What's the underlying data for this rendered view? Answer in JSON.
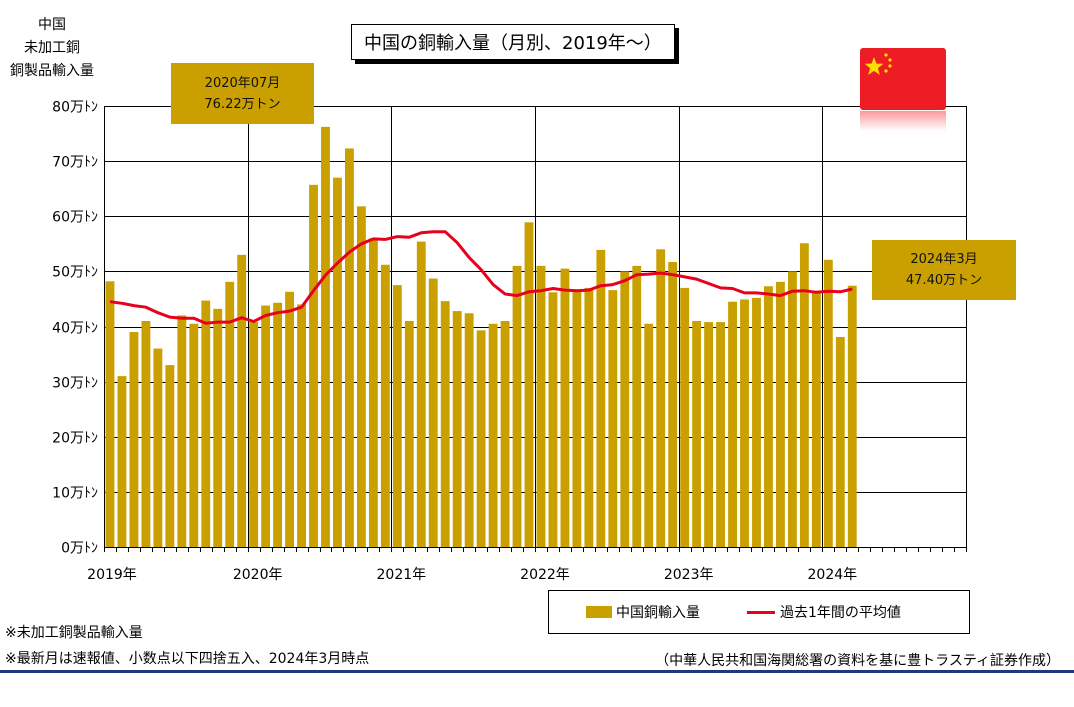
{
  "title": "中国の銅輸入量（月別、2019年～）",
  "y_axis_title_lines": [
    "中国",
    "未加工銅",
    "銅製品輸入量"
  ],
  "callouts": {
    "peak": {
      "line1": "2020年07月",
      "line2": "76.22万トン"
    },
    "latest": {
      "line1": "2024年3月",
      "line2": "47.40万トン"
    }
  },
  "legend": {
    "bar_label": "中国銅輸入量",
    "line_label": "過去1年間の平均値"
  },
  "notes": [
    "※未加工銅製品輸入量",
    "※最新月は速報値、小数点以下四捨五入、2024年3月時点"
  ],
  "source": "（中華人民共和国海関総署の資料を基に豊トラスティ証券作成）",
  "flag": {
    "name": "china-flag",
    "red": "#ee1c25",
    "yellow": "#ffde00"
  },
  "colors": {
    "bar": "#c9a000",
    "line": "#e8001c"
  },
  "chart_data": {
    "type": "bar",
    "title": "中国の銅輸入量（月別、2019年～）",
    "unit": "万トン",
    "ylim": [
      0,
      80
    ],
    "yticks": [
      0,
      10,
      20,
      30,
      40,
      50,
      60,
      70,
      80
    ],
    "ytick_labels": [
      "0万ﾄﾝ",
      "10万ﾄﾝ",
      "20万ﾄﾝ",
      "30万ﾄﾝ",
      "40万ﾄﾝ",
      "50万ﾄﾝ",
      "60万ﾄﾝ",
      "70万ﾄﾝ",
      "80万ﾄﾝ"
    ],
    "x_year_labels": [
      "2019年",
      "2020年",
      "2021年",
      "2022年",
      "2023年",
      "2024年"
    ],
    "x_range": [
      "2019-01",
      "2024-12"
    ],
    "grid": true,
    "categories": [
      "2019-01",
      "2019-02",
      "2019-03",
      "2019-04",
      "2019-05",
      "2019-06",
      "2019-07",
      "2019-08",
      "2019-09",
      "2019-10",
      "2019-11",
      "2019-12",
      "2020-01",
      "2020-02",
      "2020-03",
      "2020-04",
      "2020-05",
      "2020-06",
      "2020-07",
      "2020-08",
      "2020-09",
      "2020-10",
      "2020-11",
      "2020-12",
      "2021-01",
      "2021-02",
      "2021-03",
      "2021-04",
      "2021-05",
      "2021-06",
      "2021-07",
      "2021-08",
      "2021-09",
      "2021-10",
      "2021-11",
      "2021-12",
      "2022-01",
      "2022-02",
      "2022-03",
      "2022-04",
      "2022-05",
      "2022-06",
      "2022-07",
      "2022-08",
      "2022-09",
      "2022-10",
      "2022-11",
      "2022-12",
      "2023-01",
      "2023-02",
      "2023-03",
      "2023-04",
      "2023-05",
      "2023-06",
      "2023-07",
      "2023-08",
      "2023-09",
      "2023-10",
      "2023-11",
      "2023-12",
      "2024-01",
      "2024-02",
      "2024-03"
    ],
    "series": [
      {
        "name": "中国銅輸入量",
        "kind": "bar",
        "values": [
          48.2,
          31.0,
          39.0,
          41.0,
          36.0,
          33.0,
          42.0,
          40.5,
          44.7,
          43.2,
          48.1,
          53.0,
          40.8,
          43.8,
          44.3,
          46.3,
          44.0,
          65.7,
          76.22,
          67.0,
          72.3,
          61.8,
          56.0,
          51.2,
          47.5,
          41.0,
          55.4,
          48.7,
          44.6,
          42.8,
          42.4,
          39.3,
          40.5,
          41.0,
          51.0,
          58.9,
          51.0,
          46.2,
          50.5,
          46.6,
          47.0,
          53.9,
          46.6,
          50.0,
          51.0,
          40.5,
          54.0,
          51.7,
          47.0,
          41.0,
          40.8,
          40.8,
          44.5,
          44.9,
          45.2,
          47.3,
          48.1,
          50.0,
          55.1,
          46.5,
          52.1,
          38.1,
          47.4
        ]
      },
      {
        "name": "過去1年間の平均値",
        "kind": "line",
        "values": [
          44.5,
          44.2,
          43.8,
          43.5,
          42.5,
          41.7,
          41.5,
          41.5,
          40.6,
          40.8,
          40.8,
          41.6,
          40.9,
          42.0,
          42.5,
          42.8,
          43.5,
          46.5,
          49.3,
          51.5,
          53.5,
          55.0,
          55.9,
          55.8,
          56.3,
          56.2,
          57.0,
          57.2,
          57.2,
          55.2,
          52.5,
          50.3,
          47.6,
          45.9,
          45.6,
          46.3,
          46.5,
          46.9,
          46.6,
          46.5,
          46.6,
          47.4,
          47.6,
          48.3,
          49.4,
          49.5,
          49.7,
          49.4,
          49.0,
          48.6,
          47.8,
          47.0,
          46.9,
          46.1,
          46.1,
          45.9,
          45.6,
          46.4,
          46.5,
          46.2,
          46.4,
          46.3,
          46.8
        ]
      }
    ]
  }
}
